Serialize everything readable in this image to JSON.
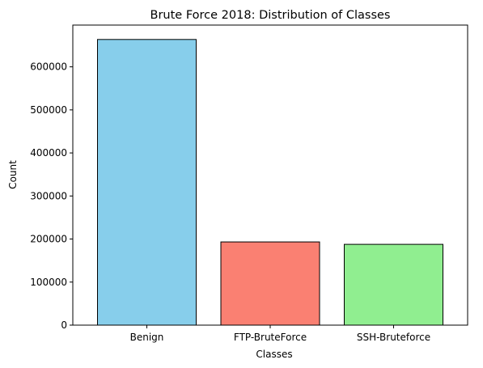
{
  "chart_data": {
    "type": "bar",
    "title": "Brute Force 2018: Distribution of Classes",
    "xlabel": "Classes",
    "ylabel": "Count",
    "categories": [
      "Benign",
      "FTP-BruteForce",
      "SSH-Bruteforce"
    ],
    "values": [
      663500,
      193360,
      187590
    ],
    "colors": [
      "#87ceeb",
      "#fa8072",
      "#90ee90"
    ],
    "edgecolor": "#000000",
    "ylim": [
      0,
      697000
    ],
    "yticks": [
      0,
      100000,
      200000,
      300000,
      400000,
      500000,
      600000
    ],
    "grid": false,
    "legend": false
  }
}
